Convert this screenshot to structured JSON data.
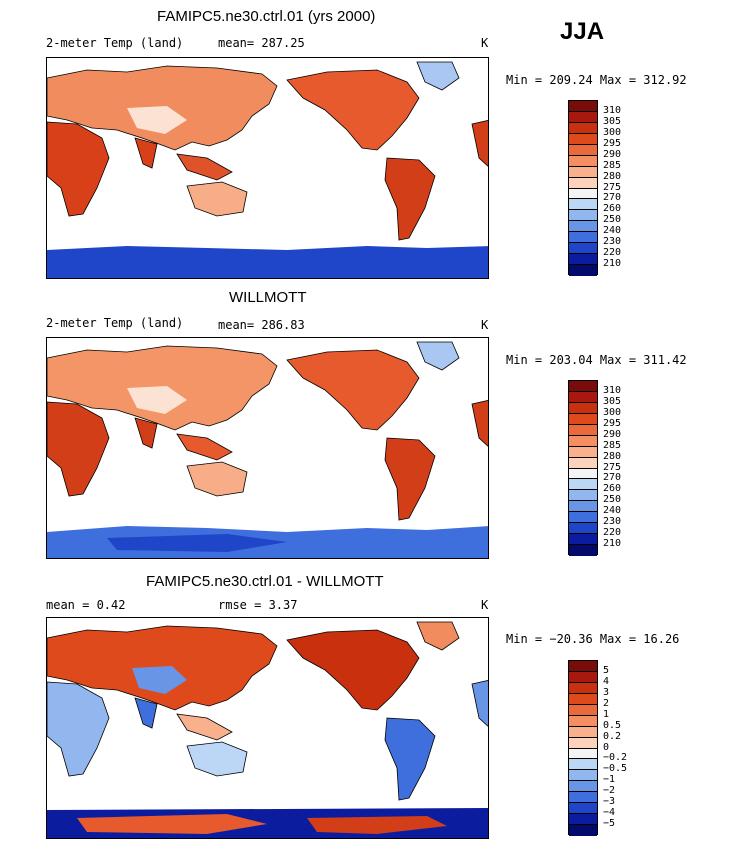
{
  "season": "JJA",
  "panels": [
    {
      "title": "FAMIPC5.ne30.ctrl.01 (yrs 2000)",
      "left_label": "2-meter Temp (land)",
      "stat": "mean=  287.25",
      "units": "K",
      "minmax": "Min = 209.24 Max = 312.92",
      "colorbar_labels": [
        "310",
        "305",
        "300",
        "295",
        "290",
        "285",
        "280",
        "275",
        "270",
        "260",
        "250",
        "240",
        "230",
        "220",
        "210"
      ],
      "colorbar_colors": [
        "#7a0c0c",
        "#a8180f",
        "#c8300e",
        "#df4a1c",
        "#eb6a3c",
        "#f38f62",
        "#f8b08d",
        "#fcd2ba",
        "#f4f4f4",
        "#bcd6f6",
        "#92b7ef",
        "#6895e6",
        "#3f6edd",
        "#1f45c8",
        "#0b1d9e",
        "#04096c"
      ]
    },
    {
      "title": "WILLMOTT",
      "left_label": "2-meter Temp (land)",
      "stat": "mean=  286.83",
      "units": "K",
      "minmax": "Min = 203.04 Max = 311.42",
      "colorbar_labels": [
        "310",
        "305",
        "300",
        "295",
        "290",
        "285",
        "280",
        "275",
        "270",
        "260",
        "250",
        "240",
        "230",
        "220",
        "210"
      ],
      "colorbar_colors": [
        "#7a0c0c",
        "#a8180f",
        "#c8300e",
        "#df4a1c",
        "#eb6a3c",
        "#f38f62",
        "#f8b08d",
        "#fcd2ba",
        "#f4f4f4",
        "#bcd6f6",
        "#92b7ef",
        "#6895e6",
        "#3f6edd",
        "#1f45c8",
        "#0b1d9e",
        "#04096c"
      ]
    },
    {
      "title": "FAMIPC5.ne30.ctrl.01 - WILLMOTT",
      "left_label": "mean =    0.42",
      "stat": "rmse =    3.37",
      "units": "K",
      "minmax": "Min = −20.36 Max =  16.26",
      "colorbar_labels": [
        "5",
        "4",
        "3",
        "2",
        "1",
        "0.5",
        "0.2",
        "0",
        "−0.2",
        "−0.5",
        "−1",
        "−2",
        "−3",
        "−4",
        "−5"
      ],
      "colorbar_colors": [
        "#7a0c0c",
        "#a8180f",
        "#c8300e",
        "#df4a1c",
        "#eb6a3c",
        "#f38f62",
        "#f8b08d",
        "#fcd2ba",
        "#f4f4f4",
        "#bcd6f6",
        "#92b7ef",
        "#6895e6",
        "#3f6edd",
        "#1f45c8",
        "#0b1d9e",
        "#04096c"
      ]
    }
  ]
}
